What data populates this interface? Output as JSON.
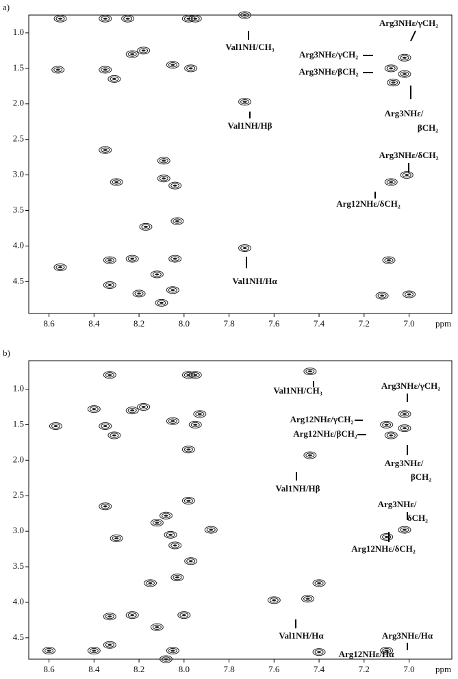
{
  "chart_data": [
    {
      "type": "scatter",
      "label": "a)",
      "xlabel": "ppm",
      "color": "#222",
      "xlim": [
        8.69,
        6.81
      ],
      "ylim": [
        4.95,
        0.75
      ],
      "xticks": [
        8.6,
        8.4,
        8.2,
        {
          "value": 8,
          "label": "8.0"
        },
        7.8,
        7.6,
        7.4,
        7.2,
        {
          "value": 7,
          "label": "7.0"
        }
      ],
      "yticks": [
        {
          "value": 1,
          "label": "1.0"
        },
        1.5,
        {
          "value": 2,
          "label": "2.0"
        },
        2.5,
        {
          "value": 3,
          "label": "3.0"
        },
        3.5,
        {
          "value": 4,
          "label": "4.0"
        },
        4.5
      ],
      "x": [
        8.55,
        8.35,
        8.25,
        7.98,
        7.95,
        7.73,
        8.23,
        8.18,
        8.56,
        8.35,
        8.31,
        8.05,
        7.97,
        7.73,
        7.08,
        7.02,
        7.07,
        7.02,
        8.35,
        8.09,
        8.09,
        8.04,
        8.3,
        7.08,
        7.01,
        8.03,
        8.17,
        7.73,
        8.55,
        8.33,
        8.23,
        8.04,
        8.33,
        8.05,
        8.2,
        8.1,
        8.12,
        7.12,
        7.09,
        7.0
      ],
      "y": [
        0.8,
        0.8,
        0.8,
        0.8,
        0.8,
        0.75,
        1.3,
        1.25,
        1.52,
        1.52,
        1.65,
        1.45,
        1.5,
        1.97,
        1.5,
        1.35,
        1.7,
        1.58,
        2.65,
        2.8,
        3.05,
        3.15,
        3.1,
        3.1,
        3.0,
        3.65,
        3.73,
        4.03,
        4.3,
        4.2,
        4.18,
        4.18,
        4.55,
        4.62,
        4.67,
        4.8,
        4.4,
        4.7,
        4.2,
        4.68
      ],
      "annotations": [
        "Val1NH/CH₃",
        "Arg3NHε/γCH₂",
        "Arg3NHε/γCH₂",
        "Arg3NHε/βCH₂",
        "Arg3NHε/",
        "βCH₂",
        "Val1NH/Hβ",
        "Arg3NHε/δCH₂",
        "Arg12NHε/δCH₂",
        "Val1NH/Hα"
      ]
    },
    {
      "type": "scatter",
      "label": "b)",
      "xlabel": "ppm",
      "color": "#222",
      "xlim": [
        8.69,
        6.81
      ],
      "ylim": [
        4.8,
        0.6
      ],
      "xticks": [
        8.6,
        8.4,
        8.2,
        {
          "value": 8,
          "label": "8.0"
        },
        7.8,
        7.6,
        7.4,
        7.2,
        {
          "value": 7,
          "label": "7.0"
        }
      ],
      "yticks": [
        {
          "value": 1,
          "label": "1.0"
        },
        1.5,
        {
          "value": 2,
          "label": "2.0"
        },
        2.5,
        {
          "value": 3,
          "label": "3.0"
        },
        3.5,
        {
          "value": 4,
          "label": "4.0"
        },
        4.5
      ],
      "x": [
        8.33,
        7.98,
        7.95,
        7.44,
        8.4,
        8.23,
        8.18,
        8.57,
        8.35,
        8.31,
        8.05,
        7.93,
        7.95,
        7.44,
        7.1,
        7.02,
        7.08,
        7.02,
        7.98,
        8.35,
        7.98,
        8.08,
        8.12,
        8.06,
        8.04,
        8.3,
        7.88,
        7.1,
        7.02,
        7.97,
        8.15,
        8.03,
        7.4,
        7.45,
        7.6,
        8.33,
        8.23,
        8.0,
        8.12,
        8.6,
        8.4,
        8.33,
        8.05,
        8.08,
        7.4,
        7.1
      ],
      "y": [
        0.8,
        0.8,
        0.8,
        0.75,
        1.28,
        1.3,
        1.25,
        1.52,
        1.52,
        1.65,
        1.45,
        1.35,
        1.5,
        1.93,
        1.5,
        1.35,
        1.65,
        1.55,
        1.85,
        2.65,
        2.57,
        2.78,
        2.88,
        3.05,
        3.2,
        3.1,
        2.98,
        3.08,
        2.98,
        3.42,
        3.73,
        3.65,
        3.73,
        3.95,
        3.97,
        4.2,
        4.18,
        4.18,
        4.35,
        4.68,
        4.68,
        4.6,
        4.68,
        4.8,
        4.7,
        4.68
      ],
      "annotations": [
        "Val1NH/CH₃",
        "Arg3NHε/γCH₂",
        "Arg12NHε/γCH₂",
        "Arg12NHε/βCH₂",
        "Arg3NHε/",
        "βCH₂",
        "Val1NH/Hβ",
        "Arg3NHε/",
        "δCH₂",
        "Arg12NHε/δCH₂",
        "Val1NH/Hα",
        "Arg3NHε/Hα",
        "Arg12NHε/Hα"
      ]
    }
  ]
}
